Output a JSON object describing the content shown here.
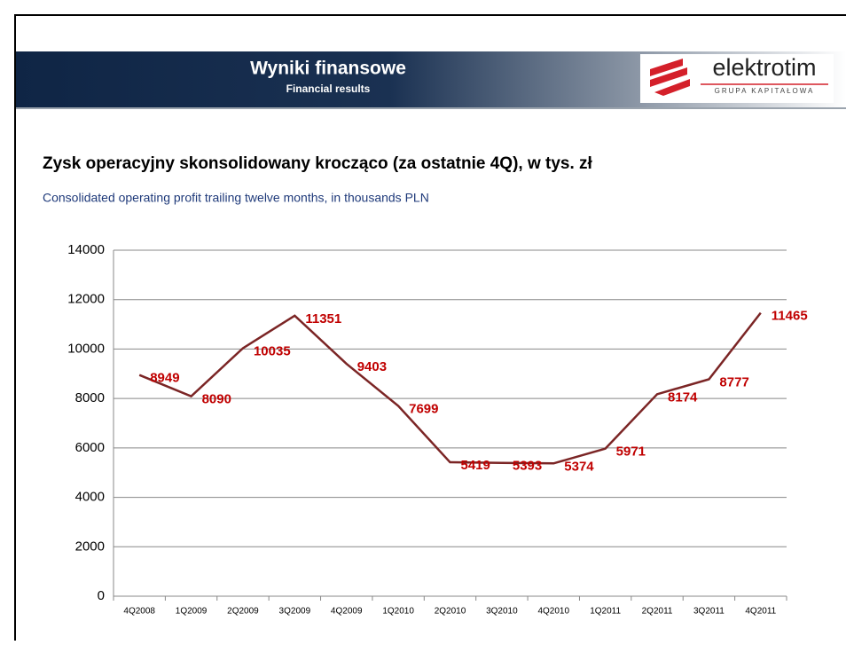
{
  "header": {
    "title": "Wyniki finansowe",
    "subtitle": "Financial results",
    "logo": "elektrotim",
    "logo_tagline": "GRUPA KAPITAŁOWA"
  },
  "chart_data": {
    "type": "line",
    "title": "Zysk operacyjny skonsolidowany krocząco (za ostatnie 4Q), w tys. zł",
    "subtitle": "Consolidated operating profit trailing twelve months, in thousands PLN",
    "categories": [
      "4Q2008",
      "1Q2009",
      "2Q2009",
      "3Q2009",
      "4Q2009",
      "1Q2010",
      "2Q2010",
      "3Q2010",
      "4Q2010",
      "1Q2011",
      "2Q2011",
      "3Q2011",
      "4Q2011"
    ],
    "values": [
      8949,
      8090,
      10035,
      11351,
      9403,
      7699,
      5419,
      5393,
      5374,
      5971,
      8174,
      8777,
      11465
    ],
    "color": "#7b2525",
    "label_color": "#c00000",
    "ylim": [
      0,
      14000
    ],
    "yticks": [
      0,
      2000,
      4000,
      6000,
      8000,
      10000,
      12000,
      14000
    ],
    "grid": true
  }
}
